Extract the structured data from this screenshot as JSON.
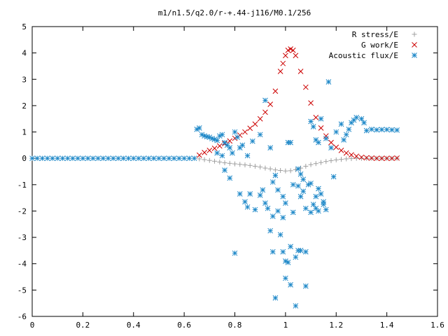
{
  "chart_data": {
    "type": "scatter",
    "title": "m1/n1.5/q2.0/r-+.44-j116/M0.1/256",
    "xlabel": "",
    "ylabel": "",
    "xlim": [
      0,
      1.6
    ],
    "ylim": [
      -6,
      5
    ],
    "x_ticks": [
      "0",
      "0.2",
      "0.4",
      "0.6",
      "0.8",
      "1",
      "1.2",
      "1.4",
      "1.6"
    ],
    "y_ticks": [
      "-6",
      "-5",
      "-4",
      "-3",
      "-2",
      "-1",
      "0",
      "1",
      "2",
      "3",
      "4",
      "5"
    ],
    "grid": false,
    "legend_position": "top-right",
    "series": [
      {
        "name": "R stress/E",
        "marker": "+",
        "color": "#a0a0a0",
        "points": [
          [
            0.66,
            -0.02
          ],
          [
            0.68,
            -0.05
          ],
          [
            0.7,
            -0.08
          ],
          [
            0.72,
            -0.11
          ],
          [
            0.74,
            -0.14
          ],
          [
            0.76,
            -0.17
          ],
          [
            0.78,
            -0.19
          ],
          [
            0.8,
            -0.21
          ],
          [
            0.82,
            -0.23
          ],
          [
            0.84,
            -0.25
          ],
          [
            0.86,
            -0.27
          ],
          [
            0.88,
            -0.3
          ],
          [
            0.9,
            -0.33
          ],
          [
            0.92,
            -0.37
          ],
          [
            0.94,
            -0.4
          ],
          [
            0.96,
            -0.44
          ],
          [
            0.98,
            -0.46
          ],
          [
            1.0,
            -0.48
          ],
          [
            1.02,
            -0.47
          ],
          [
            1.04,
            -0.43
          ],
          [
            1.06,
            -0.37
          ],
          [
            1.08,
            -0.3
          ],
          [
            1.1,
            -0.24
          ],
          [
            1.12,
            -0.2
          ],
          [
            1.14,
            -0.16
          ],
          [
            1.16,
            -0.12
          ],
          [
            1.18,
            -0.09
          ],
          [
            1.2,
            -0.06
          ],
          [
            1.22,
            -0.04
          ],
          [
            1.24,
            -0.02
          ],
          [
            1.26,
            -0.01
          ],
          [
            1.28,
            0.0
          ],
          [
            1.3,
            0.0
          ],
          [
            1.32,
            0.0
          ],
          [
            1.34,
            0.0
          ],
          [
            1.36,
            0.0
          ],
          [
            1.38,
            0.0
          ],
          [
            1.4,
            0.0
          ],
          [
            1.42,
            0.0
          ],
          [
            1.44,
            0.0
          ]
        ]
      },
      {
        "name": "G work/E",
        "marker": "x",
        "color": "#cc0000",
        "points": [
          [
            0.66,
            0.12
          ],
          [
            0.68,
            0.22
          ],
          [
            0.7,
            0.3
          ],
          [
            0.72,
            0.38
          ],
          [
            0.74,
            0.47
          ],
          [
            0.76,
            0.56
          ],
          [
            0.78,
            0.66
          ],
          [
            0.8,
            0.76
          ],
          [
            0.82,
            0.88
          ],
          [
            0.84,
            1.0
          ],
          [
            0.86,
            1.14
          ],
          [
            0.88,
            1.3
          ],
          [
            0.9,
            1.5
          ],
          [
            0.92,
            1.75
          ],
          [
            0.94,
            2.05
          ],
          [
            0.96,
            2.55
          ],
          [
            0.98,
            3.3
          ],
          [
            0.99,
            3.6
          ],
          [
            1.0,
            3.9
          ],
          [
            1.01,
            4.1
          ],
          [
            1.02,
            4.15
          ],
          [
            1.03,
            4.1
          ],
          [
            1.04,
            3.9
          ],
          [
            1.06,
            3.3
          ],
          [
            1.08,
            2.7
          ],
          [
            1.1,
            2.1
          ],
          [
            1.12,
            1.55
          ],
          [
            1.14,
            1.15
          ],
          [
            1.16,
            0.85
          ],
          [
            1.18,
            0.6
          ],
          [
            1.2,
            0.42
          ],
          [
            1.22,
            0.3
          ],
          [
            1.24,
            0.2
          ],
          [
            1.26,
            0.13
          ],
          [
            1.28,
            0.08
          ],
          [
            1.3,
            0.04
          ],
          [
            1.32,
            0.02
          ],
          [
            1.34,
            0.01
          ],
          [
            1.36,
            0.0
          ],
          [
            1.38,
            0.0
          ],
          [
            1.4,
            0.0
          ],
          [
            1.42,
            0.0
          ],
          [
            1.44,
            0.01
          ]
        ]
      },
      {
        "name": "Acoustic flux/E",
        "marker": "*",
        "color": "#1e88c8",
        "points": [
          [
            0.0,
            0.0
          ],
          [
            0.02,
            0.0
          ],
          [
            0.04,
            0.0
          ],
          [
            0.06,
            0.0
          ],
          [
            0.08,
            0.0
          ],
          [
            0.1,
            0.0
          ],
          [
            0.12,
            0.0
          ],
          [
            0.14,
            0.0
          ],
          [
            0.16,
            0.0
          ],
          [
            0.18,
            0.0
          ],
          [
            0.2,
            0.0
          ],
          [
            0.22,
            0.0
          ],
          [
            0.24,
            0.0
          ],
          [
            0.26,
            0.0
          ],
          [
            0.28,
            0.0
          ],
          [
            0.3,
            0.0
          ],
          [
            0.32,
            0.0
          ],
          [
            0.34,
            0.0
          ],
          [
            0.36,
            0.0
          ],
          [
            0.38,
            0.0
          ],
          [
            0.4,
            0.0
          ],
          [
            0.42,
            0.0
          ],
          [
            0.44,
            0.0
          ],
          [
            0.46,
            0.0
          ],
          [
            0.48,
            0.0
          ],
          [
            0.5,
            0.0
          ],
          [
            0.52,
            0.0
          ],
          [
            0.54,
            0.0
          ],
          [
            0.56,
            0.0
          ],
          [
            0.58,
            0.0
          ],
          [
            0.6,
            0.0
          ],
          [
            0.62,
            0.0
          ],
          [
            0.64,
            0.0
          ],
          [
            0.65,
            1.1
          ],
          [
            0.66,
            1.15
          ],
          [
            0.67,
            0.9
          ],
          [
            0.68,
            0.85
          ],
          [
            0.69,
            0.82
          ],
          [
            0.7,
            0.8
          ],
          [
            0.71,
            0.75
          ],
          [
            0.72,
            0.72
          ],
          [
            0.73,
            0.68
          ],
          [
            0.74,
            0.85
          ],
          [
            0.75,
            0.9
          ],
          [
            0.76,
            0.6
          ],
          [
            0.77,
            0.5
          ],
          [
            0.78,
            0.4
          ],
          [
            0.79,
            0.2
          ],
          [
            0.8,
            1.0
          ],
          [
            0.81,
            0.8
          ],
          [
            0.82,
            0.4
          ],
          [
            0.83,
            0.5
          ],
          [
            0.85,
            0.1
          ],
          [
            0.87,
            0.65
          ],
          [
            0.9,
            0.9
          ],
          [
            0.92,
            2.2
          ],
          [
            0.94,
            0.4
          ],
          [
            0.73,
            0.2
          ],
          [
            0.75,
            0.1
          ],
          [
            1.01,
            0.6
          ],
          [
            1.02,
            0.6
          ],
          [
            1.14,
            1.5
          ],
          [
            1.16,
            0.75
          ],
          [
            1.18,
            0.4
          ],
          [
            1.2,
            1.0
          ],
          [
            1.22,
            1.3
          ],
          [
            1.23,
            0.7
          ],
          [
            1.24,
            0.9
          ],
          [
            1.25,
            1.1
          ],
          [
            1.26,
            1.35
          ],
          [
            1.27,
            1.45
          ],
          [
            1.28,
            1.55
          ],
          [
            1.3,
            1.5
          ],
          [
            1.31,
            1.35
          ],
          [
            1.32,
            1.05
          ],
          [
            1.34,
            1.1
          ],
          [
            1.36,
            1.08
          ],
          [
            1.38,
            1.09
          ],
          [
            1.4,
            1.09
          ],
          [
            1.42,
            1.08
          ],
          [
            1.44,
            1.07
          ],
          [
            1.1,
            1.4
          ],
          [
            1.11,
            1.2
          ],
          [
            1.12,
            0.7
          ],
          [
            1.13,
            0.6
          ],
          [
            1.17,
            2.9
          ],
          [
            1.19,
            -0.7
          ],
          [
            1.09,
            -1.0
          ],
          [
            1.07,
            -0.8
          ],
          [
            1.06,
            -0.6
          ],
          [
            1.05,
            -0.4
          ],
          [
            0.96,
            -0.65
          ],
          [
            0.95,
            -0.9
          ],
          [
            0.97,
            -1.2
          ],
          [
            0.99,
            -1.45
          ],
          [
            1.0,
            -1.7
          ],
          [
            1.03,
            -1.0
          ],
          [
            1.05,
            -1.05
          ],
          [
            1.07,
            -1.25
          ],
          [
            1.1,
            -0.95
          ],
          [
            1.12,
            -1.45
          ],
          [
            1.13,
            -1.15
          ],
          [
            1.14,
            -1.35
          ],
          [
            1.15,
            -1.65
          ],
          [
            1.16,
            -1.95
          ],
          [
            1.13,
            -2.0
          ],
          [
            1.12,
            -1.9
          ],
          [
            1.1,
            -2.05
          ],
          [
            1.08,
            -1.9
          ],
          [
            1.03,
            -2.05
          ],
          [
            0.99,
            -2.25
          ],
          [
            0.97,
            -2.0
          ],
          [
            0.95,
            -2.2
          ],
          [
            0.93,
            -1.9
          ],
          [
            0.92,
            -1.7
          ],
          [
            0.91,
            -1.2
          ],
          [
            0.9,
            -1.4
          ],
          [
            0.88,
            -1.95
          ],
          [
            0.86,
            -1.35
          ],
          [
            0.84,
            -1.65
          ],
          [
            0.82,
            -1.35
          ],
          [
            0.8,
            -3.6
          ],
          [
            0.78,
            -0.75
          ],
          [
            0.76,
            -0.45
          ],
          [
            0.85,
            -1.85
          ],
          [
            0.94,
            -2.75
          ],
          [
            0.95,
            -3.55
          ],
          [
            0.98,
            -2.9
          ],
          [
            0.99,
            -3.55
          ],
          [
            1.0,
            -3.9
          ],
          [
            1.01,
            -3.95
          ],
          [
            1.02,
            -3.35
          ],
          [
            1.04,
            -3.75
          ],
          [
            1.05,
            -3.5
          ],
          [
            1.06,
            -3.5
          ],
          [
            1.08,
            -3.55
          ],
          [
            0.96,
            -5.3
          ],
          [
            1.0,
            -4.55
          ],
          [
            1.02,
            -4.8
          ],
          [
            1.04,
            -5.6
          ],
          [
            1.08,
            -4.85
          ],
          [
            1.15,
            -1.75
          ],
          [
            1.11,
            -1.75
          ],
          [
            1.06,
            -1.45
          ]
        ]
      }
    ]
  }
}
